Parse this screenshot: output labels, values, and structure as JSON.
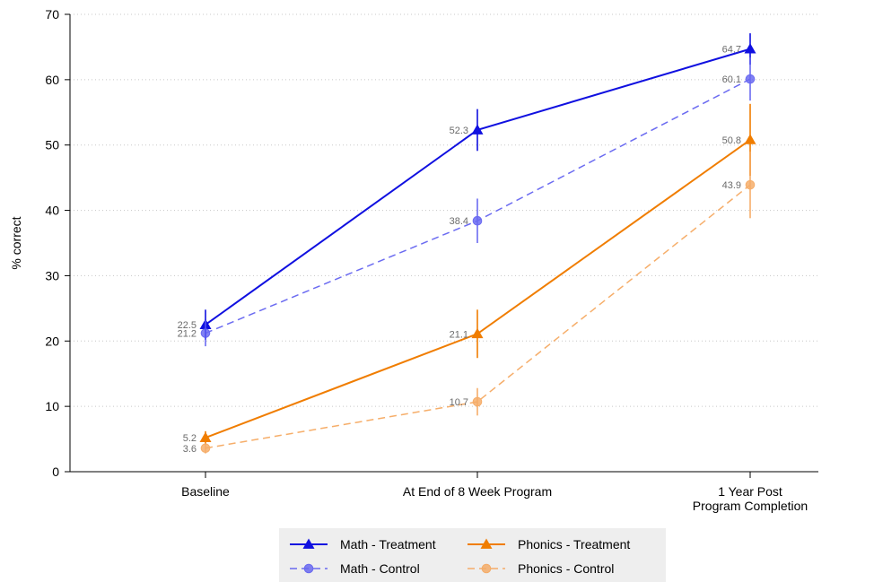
{
  "chart_data": {
    "type": "line",
    "title": "",
    "xlabel": "",
    "ylabel": "% correct",
    "ylim": [
      0,
      70
    ],
    "yticks": [
      0,
      10,
      20,
      30,
      40,
      50,
      60,
      70
    ],
    "grid": true,
    "categories": [
      [
        "Baseline"
      ],
      [
        "At End of 8 Week Program"
      ],
      [
        "1 Year Post",
        "Program Completion"
      ]
    ],
    "legend_position": "bottom",
    "series": [
      {
        "name": "Math - Treatment",
        "values": [
          22.5,
          52.3,
          64.7
        ],
        "ci_low": [
          20.2,
          49.1,
          62.3
        ],
        "ci_high": [
          24.8,
          55.5,
          67.1
        ],
        "labels": [
          "22.5",
          "52.3",
          "64.7"
        ],
        "color": "#1010e0",
        "marker": "triangle",
        "dashed": false,
        "opacity": 1
      },
      {
        "name": "Math - Control",
        "values": [
          21.2,
          38.4,
          60.1
        ],
        "ci_low": [
          19.2,
          35.0,
          56.8
        ],
        "ci_high": [
          23.2,
          41.8,
          63.4
        ],
        "labels": [
          "21.2",
          "38.4",
          "60.1"
        ],
        "color": "#5b5bf0",
        "marker": "circle",
        "dashed": true,
        "opacity": 0.9
      },
      {
        "name": "Phonics - Treatment",
        "values": [
          5.2,
          21.1,
          50.8
        ],
        "ci_low": [
          4.2,
          17.4,
          45.3
        ],
        "ci_high": [
          6.2,
          24.8,
          56.3
        ],
        "labels": [
          "5.2",
          "21.1",
          "50.8"
        ],
        "color": "#f07d00",
        "marker": "triangle",
        "dashed": false,
        "opacity": 1
      },
      {
        "name": "Phonics - Control",
        "values": [
          3.6,
          10.7,
          43.9
        ],
        "ci_low": [
          2.8,
          8.6,
          38.8
        ],
        "ci_high": [
          4.4,
          12.8,
          49.0
        ],
        "labels": [
          "3.6",
          "10.7",
          "43.9"
        ],
        "color": "#f5a55a",
        "marker": "circle",
        "dashed": true,
        "opacity": 0.9
      }
    ]
  }
}
